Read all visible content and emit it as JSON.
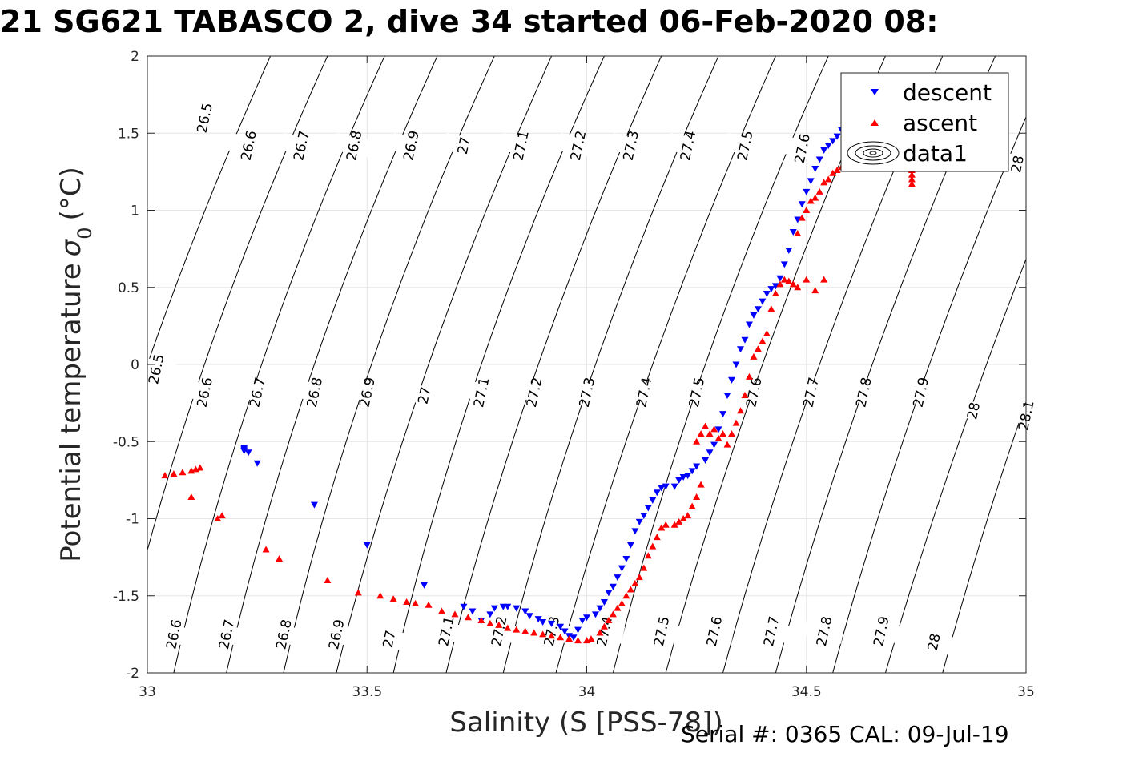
{
  "figure": {
    "title": "21 SG621 TABASCO 2, dive 34 started 06-Feb-2020 08:",
    "serial_note": "Serial #: 0365  CAL: 09-Jul-19"
  },
  "chart_data": {
    "type": "scatter",
    "xlabel": "Salinity (S [PSS-78])",
    "ylabel": "Potential temperature",
    "ylabel_symbol": "σ",
    "ylabel_subscript": "0",
    "ylabel_unit": "(°C)",
    "xlim": [
      33,
      35
    ],
    "ylim": [
      -2,
      2
    ],
    "x_ticks": [
      33,
      33.5,
      34,
      34.5,
      35
    ],
    "x_tick_labels": [
      "33",
      "33.5",
      "34",
      "34.5",
      "35"
    ],
    "y_ticks": [
      -2,
      -1.5,
      -1,
      -0.5,
      0,
      0.5,
      1,
      1.5,
      2
    ],
    "y_tick_labels": [
      "-2",
      "-1.5",
      "-1",
      "-0.5",
      "0",
      "0.5",
      "1",
      "1.5",
      "2"
    ],
    "grid": true,
    "legend_position": "top-right",
    "colors": {
      "descent": "#0000ff",
      "ascent": "#ff0000",
      "contour": "#000000",
      "grid": "#e6e6e6"
    },
    "density_contours": {
      "levels": [
        26.5,
        26.6,
        26.7,
        26.8,
        26.9,
        27,
        27.1,
        27.2,
        27.3,
        27.4,
        27.5,
        27.6,
        27.7,
        27.8,
        27.9,
        28,
        28.1
      ],
      "salinity_at_theta_minus2": [
        32.79,
        32.93,
        33.06,
        33.18,
        33.31,
        33.43,
        33.56,
        33.68,
        33.81,
        33.93,
        34.06,
        34.18,
        34.31,
        34.43,
        34.56,
        34.68,
        34.81
      ],
      "salinity_at_theta_0": [
        33.0,
        33.13,
        33.26,
        33.38,
        33.51,
        33.64,
        33.76,
        33.89,
        34.02,
        34.15,
        34.27,
        34.4,
        34.53,
        34.65,
        34.78,
        34.91,
        35.03
      ],
      "salinity_at_theta_2": [
        33.28,
        33.41,
        33.54,
        33.66,
        33.79,
        33.92,
        34.04,
        34.17,
        34.3,
        34.43,
        34.55,
        34.68,
        34.81,
        34.93,
        35.06,
        35.19,
        35.31
      ],
      "labels_top": [
        {
          "text": "26.5",
          "s": 33.13,
          "t": 1.6
        },
        {
          "text": "26.6",
          "s": 33.23,
          "t": 1.42
        },
        {
          "text": "26.7",
          "s": 33.35,
          "t": 1.42
        },
        {
          "text": "26.8",
          "s": 33.47,
          "t": 1.42
        },
        {
          "text": "26.9",
          "s": 33.6,
          "t": 1.42
        },
        {
          "text": "27",
          "s": 33.72,
          "t": 1.42
        },
        {
          "text": "27.1",
          "s": 33.85,
          "t": 1.42
        },
        {
          "text": "27.2",
          "s": 33.98,
          "t": 1.42
        },
        {
          "text": "27.3",
          "s": 34.1,
          "t": 1.42
        },
        {
          "text": "27.4",
          "s": 34.23,
          "t": 1.42
        },
        {
          "text": "27.5",
          "s": 34.36,
          "t": 1.42
        },
        {
          "text": "27.6",
          "s": 34.49,
          "t": 1.4
        },
        {
          "text": "28",
          "s": 34.98,
          "t": 1.3
        }
      ],
      "labels_middle": [
        {
          "text": "26.5",
          "s": 33.02,
          "t": -0.03
        },
        {
          "text": "26.6",
          "s": 33.13,
          "t": -0.18
        },
        {
          "text": "26.7",
          "s": 33.25,
          "t": -0.18
        },
        {
          "text": "26.8",
          "s": 33.38,
          "t": -0.18
        },
        {
          "text": "26.9",
          "s": 33.5,
          "t": -0.18
        },
        {
          "text": "27",
          "s": 33.63,
          "t": -0.2
        },
        {
          "text": "27.1",
          "s": 33.76,
          "t": -0.18
        },
        {
          "text": "27.2",
          "s": 33.88,
          "t": -0.18
        },
        {
          "text": "27.3",
          "s": 34.0,
          "t": -0.18
        },
        {
          "text": "27.4",
          "s": 34.13,
          "t": -0.18
        },
        {
          "text": "27.5",
          "s": 34.25,
          "t": -0.18
        },
        {
          "text": "27.6",
          "s": 34.38,
          "t": -0.18
        },
        {
          "text": "27.7",
          "s": 34.51,
          "t": -0.18
        },
        {
          "text": "27.8",
          "s": 34.63,
          "t": -0.18
        },
        {
          "text": "27.9",
          "s": 34.76,
          "t": -0.18
        },
        {
          "text": "28",
          "s": 34.88,
          "t": -0.3
        },
        {
          "text": "28.1",
          "s": 35.0,
          "t": -0.33
        }
      ],
      "labels_bottom": [
        {
          "text": "26.6",
          "s": 33.06,
          "t": -1.75
        },
        {
          "text": "26.7",
          "s": 33.18,
          "t": -1.75
        },
        {
          "text": "26.8",
          "s": 33.31,
          "t": -1.75
        },
        {
          "text": "26.9",
          "s": 33.43,
          "t": -1.75
        },
        {
          "text": "27",
          "s": 33.55,
          "t": -1.78
        },
        {
          "text": "27.1",
          "s": 33.68,
          "t": -1.73
        },
        {
          "text": "27.2",
          "s": 33.8,
          "t": -1.73
        },
        {
          "text": "27.3",
          "s": 33.92,
          "t": -1.73
        },
        {
          "text": "27.4",
          "s": 34.04,
          "t": -1.73
        },
        {
          "text": "27.5",
          "s": 34.17,
          "t": -1.73
        },
        {
          "text": "27.6",
          "s": 34.29,
          "t": -1.73
        },
        {
          "text": "27.7",
          "s": 34.42,
          "t": -1.73
        },
        {
          "text": "27.8",
          "s": 34.54,
          "t": -1.73
        },
        {
          "text": "27.9",
          "s": 34.67,
          "t": -1.73
        },
        {
          "text": "28",
          "s": 34.79,
          "t": -1.8
        }
      ]
    },
    "series": [
      {
        "name": "descent",
        "marker": "triangle-down",
        "points": [
          [
            33.22,
            -0.54
          ],
          [
            33.22,
            -0.56
          ],
          [
            33.23,
            -0.57
          ],
          [
            33.22,
            -0.55
          ],
          [
            33.25,
            -0.64
          ],
          [
            33.38,
            -0.91
          ],
          [
            33.5,
            -1.17
          ],
          [
            33.63,
            -1.43
          ],
          [
            33.72,
            -1.57
          ],
          [
            33.74,
            -1.6
          ],
          [
            33.76,
            -1.66
          ],
          [
            33.78,
            -1.62
          ],
          [
            33.79,
            -1.58
          ],
          [
            33.81,
            -1.57
          ],
          [
            33.82,
            -1.57
          ],
          [
            33.84,
            -1.58
          ],
          [
            33.86,
            -1.6
          ],
          [
            33.87,
            -1.63
          ],
          [
            33.89,
            -1.65
          ],
          [
            33.9,
            -1.67
          ],
          [
            33.92,
            -1.68
          ],
          [
            33.94,
            -1.7
          ],
          [
            33.95,
            -1.73
          ],
          [
            33.96,
            -1.76
          ],
          [
            33.97,
            -1.77
          ],
          [
            33.98,
            -1.72
          ],
          [
            33.99,
            -1.66
          ],
          [
            34.0,
            -1.64
          ],
          [
            34.02,
            -1.62
          ],
          [
            34.03,
            -1.58
          ],
          [
            34.04,
            -1.54
          ],
          [
            34.05,
            -1.48
          ],
          [
            34.06,
            -1.44
          ],
          [
            34.07,
            -1.38
          ],
          [
            34.08,
            -1.32
          ],
          [
            34.09,
            -1.26
          ],
          [
            34.1,
            -1.17
          ],
          [
            34.11,
            -1.08
          ],
          [
            34.12,
            -1.02
          ],
          [
            34.13,
            -0.98
          ],
          [
            34.14,
            -0.93
          ],
          [
            34.15,
            -0.88
          ],
          [
            34.16,
            -0.83
          ],
          [
            34.17,
            -0.8
          ],
          [
            34.18,
            -0.79
          ],
          [
            34.2,
            -0.79
          ],
          [
            34.21,
            -0.75
          ],
          [
            34.22,
            -0.73
          ],
          [
            34.23,
            -0.72
          ],
          [
            34.24,
            -0.69
          ],
          [
            34.25,
            -0.66
          ],
          [
            34.27,
            -0.62
          ],
          [
            34.28,
            -0.57
          ],
          [
            34.29,
            -0.52
          ],
          [
            34.3,
            -0.42
          ],
          [
            34.31,
            -0.32
          ],
          [
            34.32,
            -0.2
          ],
          [
            34.33,
            -0.1
          ],
          [
            34.34,
            0.0
          ],
          [
            34.35,
            0.1
          ],
          [
            34.36,
            0.16
          ],
          [
            34.37,
            0.26
          ],
          [
            34.38,
            0.32
          ],
          [
            34.39,
            0.36
          ],
          [
            34.4,
            0.41
          ],
          [
            34.41,
            0.46
          ],
          [
            34.42,
            0.49
          ],
          [
            34.43,
            0.51
          ],
          [
            34.44,
            0.56
          ],
          [
            34.45,
            0.65
          ],
          [
            34.46,
            0.74
          ],
          [
            34.47,
            0.86
          ],
          [
            34.48,
            0.94
          ],
          [
            34.49,
            1.04
          ],
          [
            34.5,
            1.12
          ],
          [
            34.51,
            1.19
          ],
          [
            34.52,
            1.27
          ],
          [
            34.53,
            1.33
          ],
          [
            34.54,
            1.39
          ],
          [
            34.55,
            1.42
          ],
          [
            34.56,
            1.45
          ],
          [
            34.57,
            1.48
          ],
          [
            34.58,
            1.52
          ],
          [
            34.59,
            1.56
          ],
          [
            34.6,
            1.6
          ],
          [
            34.61,
            1.62
          ]
        ]
      },
      {
        "name": "ascent",
        "marker": "triangle-up",
        "points": [
          [
            33.04,
            -0.72
          ],
          [
            33.06,
            -0.71
          ],
          [
            33.08,
            -0.7
          ],
          [
            33.1,
            -0.69
          ],
          [
            33.11,
            -0.68
          ],
          [
            33.12,
            -0.67
          ],
          [
            33.1,
            -0.86
          ],
          [
            33.16,
            -1.0
          ],
          [
            33.17,
            -0.98
          ],
          [
            33.27,
            -1.2
          ],
          [
            33.3,
            -1.26
          ],
          [
            33.41,
            -1.4
          ],
          [
            33.48,
            -1.48
          ],
          [
            33.53,
            -1.5
          ],
          [
            33.56,
            -1.52
          ],
          [
            33.59,
            -1.54
          ],
          [
            33.61,
            -1.55
          ],
          [
            33.64,
            -1.56
          ],
          [
            33.67,
            -1.6
          ],
          [
            33.7,
            -1.62
          ],
          [
            33.73,
            -1.64
          ],
          [
            33.76,
            -1.66
          ],
          [
            33.78,
            -1.68
          ],
          [
            33.8,
            -1.69
          ],
          [
            33.82,
            -1.71
          ],
          [
            33.84,
            -1.72
          ],
          [
            33.86,
            -1.73
          ],
          [
            33.88,
            -1.74
          ],
          [
            33.9,
            -1.75
          ],
          [
            33.92,
            -1.76
          ],
          [
            33.94,
            -1.77
          ],
          [
            33.96,
            -1.78
          ],
          [
            33.98,
            -1.79
          ],
          [
            34.0,
            -1.79
          ],
          [
            34.01,
            -1.78
          ],
          [
            34.03,
            -1.74
          ],
          [
            34.04,
            -1.7
          ],
          [
            34.05,
            -1.66
          ],
          [
            34.06,
            -1.62
          ],
          [
            34.07,
            -1.58
          ],
          [
            34.08,
            -1.55
          ],
          [
            34.09,
            -1.5
          ],
          [
            34.1,
            -1.46
          ],
          [
            34.11,
            -1.42
          ],
          [
            34.12,
            -1.38
          ],
          [
            34.13,
            -1.32
          ],
          [
            34.14,
            -1.24
          ],
          [
            34.15,
            -1.18
          ],
          [
            34.16,
            -1.12
          ],
          [
            34.17,
            -1.06
          ],
          [
            34.18,
            -1.04
          ],
          [
            34.2,
            -1.04
          ],
          [
            34.21,
            -1.02
          ],
          [
            34.22,
            -1.0
          ],
          [
            34.23,
            -0.98
          ],
          [
            34.24,
            -0.92
          ],
          [
            34.25,
            -0.86
          ],
          [
            34.26,
            -0.78
          ],
          [
            34.25,
            -0.5
          ],
          [
            34.26,
            -0.45
          ],
          [
            34.27,
            -0.4
          ],
          [
            34.28,
            -0.45
          ],
          [
            34.29,
            -0.42
          ],
          [
            34.3,
            -0.48
          ],
          [
            34.31,
            -0.45
          ],
          [
            34.32,
            -0.52
          ],
          [
            34.33,
            -0.45
          ],
          [
            34.34,
            -0.38
          ],
          [
            34.35,
            -0.3
          ],
          [
            34.36,
            -0.2
          ],
          [
            34.37,
            -0.08
          ],
          [
            34.38,
            0.05
          ],
          [
            34.39,
            0.1
          ],
          [
            34.4,
            0.15
          ],
          [
            34.41,
            0.2
          ],
          [
            34.42,
            0.36
          ],
          [
            34.43,
            0.46
          ],
          [
            34.44,
            0.52
          ],
          [
            34.45,
            0.55
          ],
          [
            34.46,
            0.54
          ],
          [
            34.47,
            0.52
          ],
          [
            34.48,
            0.5
          ],
          [
            34.5,
            0.55
          ],
          [
            34.52,
            0.48
          ],
          [
            34.54,
            0.55
          ],
          [
            34.48,
            0.85
          ],
          [
            34.49,
            0.95
          ],
          [
            34.5,
            1.0
          ],
          [
            34.51,
            1.06
          ],
          [
            34.52,
            1.08
          ],
          [
            34.53,
            1.12
          ],
          [
            34.54,
            1.18
          ],
          [
            34.55,
            1.2
          ],
          [
            34.56,
            1.24
          ],
          [
            34.57,
            1.26
          ],
          [
            34.58,
            1.28
          ],
          [
            34.59,
            1.3
          ],
          [
            34.6,
            1.33
          ],
          [
            34.61,
            1.3
          ],
          [
            34.62,
            1.27
          ],
          [
            34.74,
            1.17
          ],
          [
            34.74,
            1.2
          ],
          [
            34.74,
            1.23
          ],
          [
            34.74,
            1.26
          ],
          [
            34.74,
            1.29
          ]
        ]
      }
    ],
    "legend": [
      "descent",
      "ascent",
      "data1"
    ]
  }
}
